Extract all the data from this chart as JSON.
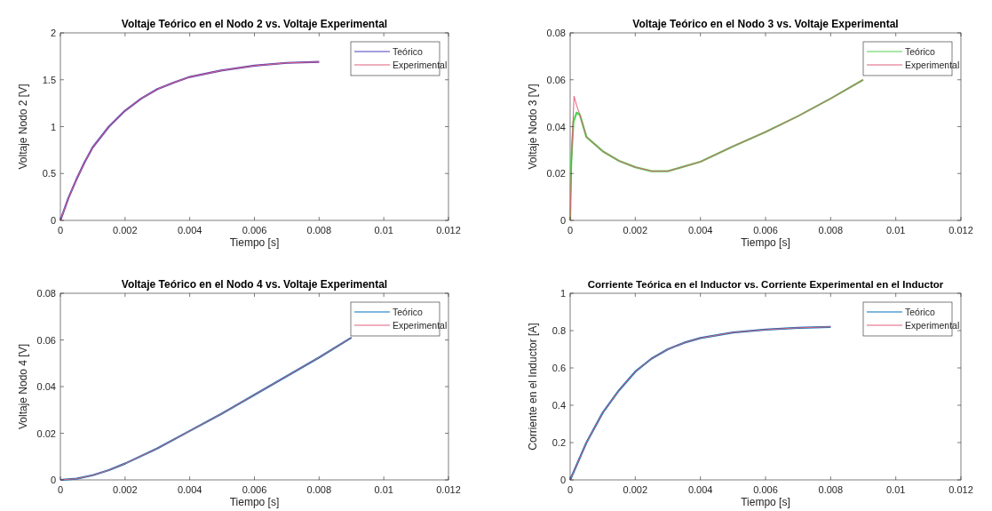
{
  "chart_data": [
    {
      "type": "line",
      "title": "Voltaje Teórico en el Nodo 2 vs. Voltaje Experimental",
      "xlabel": "Tiempo [s]",
      "ylabel": "Voltaje Nodo 2 [V]",
      "xlim": [
        0,
        0.012
      ],
      "xticks": [
        0,
        0.002,
        0.004,
        0.006,
        0.008,
        0.01,
        0.012
      ],
      "ylim": [
        0,
        2
      ],
      "yticks": [
        0,
        0.5,
        1,
        1.5,
        2
      ],
      "grid": false,
      "legend": "top right",
      "series": [
        {
          "name": "Teórico",
          "color": "#4b3fc0",
          "x": [
            0,
            0.00025,
            0.0005,
            0.00075,
            0.001,
            0.0015,
            0.002,
            0.0025,
            0.003,
            0.0035,
            0.004,
            0.005,
            0.006,
            0.007,
            0.008
          ],
          "values": [
            0,
            0.24,
            0.44,
            0.62,
            0.78,
            1.0,
            1.17,
            1.3,
            1.4,
            1.47,
            1.53,
            1.6,
            1.65,
            1.68,
            1.69
          ]
        },
        {
          "name": "Experimental",
          "color": "#e0607a",
          "x": [
            0,
            0.00025,
            0.0005,
            0.00075,
            0.001,
            0.0015,
            0.002,
            0.0025,
            0.003,
            0.0035,
            0.004,
            0.005,
            0.006,
            0.007,
            0.008
          ],
          "values": [
            0,
            0.24,
            0.44,
            0.62,
            0.78,
            1.0,
            1.17,
            1.3,
            1.4,
            1.47,
            1.53,
            1.6,
            1.65,
            1.68,
            1.69
          ]
        }
      ]
    },
    {
      "type": "line",
      "title": "Voltaje Teórico en el Nodo 3 vs. Voltaje Experimental",
      "xlabel": "Tiempo [s]",
      "ylabel": "Voltaje Nodo 3 [V]",
      "xlim": [
        0,
        0.012
      ],
      "xticks": [
        0,
        0.002,
        0.004,
        0.006,
        0.008,
        0.01,
        0.012
      ],
      "ylim": [
        0,
        0.08
      ],
      "yticks": [
        0,
        0.02,
        0.04,
        0.06,
        0.08
      ],
      "grid": false,
      "legend": "top right",
      "series": [
        {
          "name": "Teórico",
          "color": "#50d050",
          "x": [
            0,
            3e-05,
            0.0001,
            0.0002,
            0.0003,
            0.0005,
            0.001,
            0.0015,
            0.002,
            0.0025,
            0.003,
            0.004,
            0.005,
            0.006,
            0.007,
            0.008,
            0.009
          ],
          "values": [
            0,
            0.024,
            0.042,
            0.046,
            0.045,
            0.0356,
            0.0295,
            0.0254,
            0.0227,
            0.021,
            0.021,
            0.025,
            0.0316,
            0.0377,
            0.0445,
            0.052,
            0.06
          ]
        },
        {
          "name": "Experimental",
          "color": "#e0607a",
          "x": [
            0,
            5e-05,
            0.00012,
            0.0002,
            0.0003,
            0.0005,
            0.001,
            0.0015,
            0.002,
            0.0025,
            0.003,
            0.004,
            0.005,
            0.006,
            0.007,
            0.008,
            0.009
          ],
          "values": [
            0,
            0.03,
            0.053,
            0.049,
            0.045,
            0.0356,
            0.0295,
            0.0254,
            0.0227,
            0.021,
            0.021,
            0.025,
            0.0316,
            0.0377,
            0.0445,
            0.052,
            0.06
          ]
        }
      ]
    },
    {
      "type": "line",
      "title": "Voltaje Teórico en el Nodo 4 vs. Voltaje Experimental",
      "xlabel": "Tiempo [s]",
      "ylabel": "Voltaje Nodo 4 [V]",
      "xlim": [
        0,
        0.012
      ],
      "xticks": [
        0,
        0.002,
        0.004,
        0.006,
        0.008,
        0.01,
        0.012
      ],
      "ylim": [
        0,
        0.08
      ],
      "yticks": [
        0,
        0.02,
        0.04,
        0.06,
        0.08
      ],
      "grid": false,
      "legend": "top right",
      "series": [
        {
          "name": "Teórico",
          "color": "#0072bd",
          "x": [
            0,
            0.0005,
            0.001,
            0.0015,
            0.002,
            0.003,
            0.004,
            0.005,
            0.006,
            0.007,
            0.008,
            0.009
          ],
          "values": [
            0,
            0.0005,
            0.002,
            0.0042,
            0.007,
            0.0135,
            0.021,
            0.0285,
            0.0365,
            0.0445,
            0.0525,
            0.061
          ]
        },
        {
          "name": "Experimental",
          "color": "#e0607a",
          "x": [
            0,
            0.0005,
            0.001,
            0.0015,
            0.002,
            0.003,
            0.004,
            0.005,
            0.006,
            0.007,
            0.008,
            0.009
          ],
          "values": [
            0,
            0.0005,
            0.002,
            0.0042,
            0.007,
            0.0135,
            0.021,
            0.0285,
            0.0365,
            0.0445,
            0.0525,
            0.061
          ]
        }
      ]
    },
    {
      "type": "line",
      "title": "Corriente Teórica en el Inductor vs. Corriente Experimental en el Inductor",
      "xlabel": "Tiempo [s]",
      "ylabel": "Corriente en el Inductor [A]",
      "xlim": [
        0,
        0.012
      ],
      "xticks": [
        0,
        0.002,
        0.004,
        0.006,
        0.008,
        0.01,
        0.012
      ],
      "ylim": [
        0,
        1
      ],
      "yticks": [
        0,
        0.2,
        0.4,
        0.6,
        0.8,
        1
      ],
      "grid": false,
      "legend": "top right",
      "series": [
        {
          "name": "Teórico",
          "color": "#0072bd",
          "x": [
            0,
            0.0005,
            0.001,
            0.0015,
            0.002,
            0.0025,
            0.003,
            0.0035,
            0.004,
            0.005,
            0.006,
            0.007,
            0.008
          ],
          "values": [
            0,
            0.2,
            0.36,
            0.48,
            0.58,
            0.65,
            0.7,
            0.735,
            0.76,
            0.79,
            0.805,
            0.815,
            0.82
          ]
        },
        {
          "name": "Experimental",
          "color": "#e0607a",
          "x": [
            0,
            0.0005,
            0.001,
            0.0015,
            0.002,
            0.0025,
            0.003,
            0.0035,
            0.004,
            0.005,
            0.006,
            0.007,
            0.008
          ],
          "values": [
            0,
            0.2,
            0.36,
            0.48,
            0.58,
            0.65,
            0.7,
            0.735,
            0.76,
            0.79,
            0.805,
            0.815,
            0.82
          ]
        }
      ]
    }
  ]
}
